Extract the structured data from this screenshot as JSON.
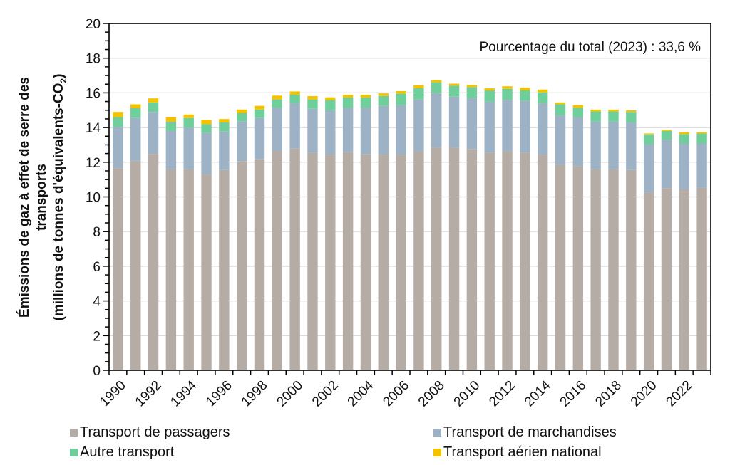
{
  "chart_data": {
    "type": "bar",
    "stacked": true,
    "title": "",
    "annotation": "Pourcentage du total (2023) : 33,6 %",
    "ylabel_lines": [
      "Émissions de gaz à effet de serre des",
      "transports",
      "(millions de tonnes d'équivalents-CO",
      "2",
      ")"
    ],
    "xlabel": "",
    "ylim": [
      0,
      20
    ],
    "yticks": [
      0,
      2,
      4,
      6,
      8,
      10,
      12,
      14,
      16,
      18,
      20
    ],
    "ytick_labels": [
      "0",
      "2",
      "4",
      "6",
      "8",
      "10",
      "12",
      "14",
      "16",
      "18",
      "20"
    ],
    "y_minor_step": 0.5,
    "grid": true,
    "legend_position": "bottom",
    "categories": [
      "1990",
      "1991",
      "1992",
      "1993",
      "1994",
      "1995",
      "1996",
      "1997",
      "1998",
      "1999",
      "2000",
      "2001",
      "2002",
      "2003",
      "2004",
      "2005",
      "2006",
      "2007",
      "2008",
      "2009",
      "2010",
      "2011",
      "2012",
      "2013",
      "2014",
      "2015",
      "2016",
      "2017",
      "2018",
      "2019",
      "2020",
      "2021",
      "2022",
      "2023"
    ],
    "xtick_labels": [
      "1990",
      "1992",
      "1994",
      "1996",
      "1998",
      "2000",
      "2002",
      "2004",
      "2006",
      "2008",
      "2010",
      "2012",
      "2014",
      "2016",
      "2018",
      "2020",
      "2022"
    ],
    "series": [
      {
        "name": "Transport de passagers",
        "color": "#b5aca5",
        "values": [
          11.65,
          12.08,
          12.48,
          11.59,
          11.59,
          11.29,
          11.55,
          12.06,
          12.19,
          12.65,
          12.78,
          12.55,
          12.44,
          12.58,
          12.47,
          12.44,
          12.44,
          12.63,
          12.85,
          12.85,
          12.76,
          12.55,
          12.63,
          12.54,
          12.44,
          11.85,
          11.77,
          11.59,
          11.59,
          11.55,
          10.25,
          10.5,
          10.44,
          10.53
        ]
      },
      {
        "name": "Transport de marchandises",
        "color": "#9db3c5",
        "values": [
          2.39,
          2.47,
          2.42,
          2.21,
          2.41,
          2.41,
          2.22,
          2.3,
          2.36,
          2.5,
          2.63,
          2.53,
          2.56,
          2.56,
          2.68,
          2.81,
          2.85,
          2.99,
          3.14,
          2.93,
          2.94,
          2.95,
          2.96,
          3.01,
          2.97,
          2.85,
          2.83,
          2.75,
          2.75,
          2.74,
          2.79,
          2.79,
          2.64,
          2.55
        ]
      },
      {
        "name": "Autre transport",
        "color": "#6fcf9a",
        "values": [
          0.56,
          0.57,
          0.55,
          0.53,
          0.55,
          0.49,
          0.52,
          0.48,
          0.49,
          0.47,
          0.48,
          0.54,
          0.58,
          0.59,
          0.58,
          0.57,
          0.67,
          0.65,
          0.62,
          0.63,
          0.63,
          0.64,
          0.64,
          0.59,
          0.62,
          0.64,
          0.54,
          0.59,
          0.59,
          0.61,
          0.56,
          0.52,
          0.54,
          0.58
        ]
      },
      {
        "name": "Transport aérien national",
        "color": "#f5c200",
        "values": [
          0.3,
          0.22,
          0.23,
          0.27,
          0.2,
          0.26,
          0.2,
          0.2,
          0.21,
          0.22,
          0.19,
          0.19,
          0.16,
          0.16,
          0.16,
          0.15,
          0.14,
          0.17,
          0.13,
          0.12,
          0.12,
          0.12,
          0.15,
          0.16,
          0.16,
          0.11,
          0.15,
          0.11,
          0.11,
          0.09,
          0.06,
          0.07,
          0.11,
          0.08
        ]
      }
    ]
  },
  "legend": {
    "items": [
      {
        "label": "Transport de passagers",
        "color": "#b5aca5"
      },
      {
        "label": "Transport de marchandises",
        "color": "#9db3c5"
      },
      {
        "label": "Autre transport",
        "color": "#6fcf9a"
      },
      {
        "label": "Transport aérien national",
        "color": "#f5c200"
      }
    ]
  }
}
